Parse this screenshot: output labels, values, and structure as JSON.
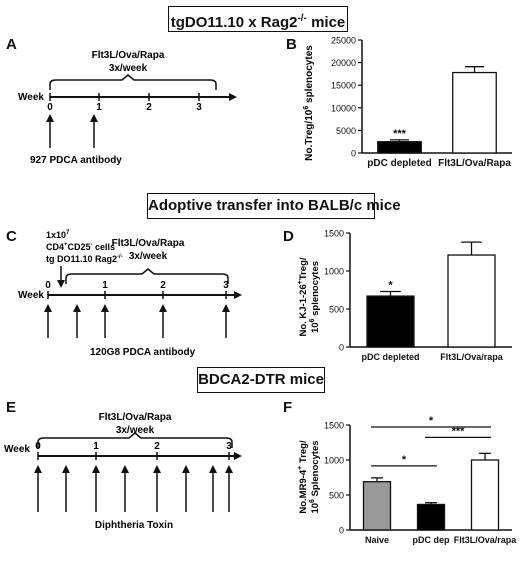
{
  "sections": [
    {
      "title": "tgDO11.10 x Rag2",
      "title_sup": "-/-",
      "title_after": " mice"
    },
    {
      "title": "Adoptive transfer into BALB/c mice"
    },
    {
      "title": "BDCA2-DTR mice"
    }
  ],
  "panels": {
    "a": {
      "letter": "A"
    },
    "b": {
      "letter": "B"
    },
    "c": {
      "letter": "C"
    },
    "d": {
      "letter": "D"
    },
    "e": {
      "letter": "E"
    },
    "f": {
      "letter": "F"
    }
  },
  "timelines": {
    "a": {
      "week_label": "Week",
      "ticks": [
        "0",
        "1",
        "2",
        "3"
      ],
      "treatment_line1": "Flt3L/Ova/Rapa",
      "treatment_line2": "3x/week",
      "antibody": "927 PDCA antibody"
    },
    "c": {
      "week_label": "Week",
      "ticks": [
        "0",
        "1",
        "2",
        "3"
      ],
      "transfer_line1": "1x10",
      "transfer_line1_sup": "7",
      "transfer_line2": "CD4",
      "transfer_line2_sup1": "+",
      "transfer_line2_mid": "CD25",
      "transfer_line2_sup2": "-",
      "transfer_line2_after": " cells",
      "transfer_line3": "tg DO11.10 Rag2",
      "transfer_line3_sup": "-/-",
      "treatment_line1": "Flt3L/Ova/Rapa",
      "treatment_line2": "3x/week",
      "antibody": "120G8 PDCA antibody"
    },
    "e": {
      "week_label": "Week",
      "ticks": [
        "0",
        "1",
        "2",
        "3"
      ],
      "treatment_line1": "Flt3L/Ova/Rapa",
      "treatment_line2": "3x/week",
      "toxin": "Diphtheria Toxin"
    }
  },
  "chart_data": [
    {
      "panel": "B",
      "type": "bar",
      "categories": [
        "pDC depleted",
        "Flt3L/Ova/Rapa"
      ],
      "values": [
        2500,
        17800
      ],
      "errors": [
        400,
        1300
      ],
      "colors": [
        "#000000",
        "#ffffff"
      ],
      "ylabel": "No.Treg/10",
      "ylabel_sup": "6",
      "ylabel_after": " splenocytes",
      "ylim": [
        0,
        25000
      ],
      "yticks": [
        0,
        5000,
        10000,
        15000,
        20000,
        25000
      ],
      "annotations": [
        "***"
      ]
    },
    {
      "panel": "D",
      "type": "bar",
      "categories": [
        "pDC depleted",
        "Flt3L/Ova/rapa"
      ],
      "values": [
        670,
        1210
      ],
      "errors": [
        60,
        170
      ],
      "colors": [
        "#000000",
        "#ffffff"
      ],
      "ylabel_line1": "No. KJ-1-26",
      "ylabel_line1_sup": "+",
      "ylabel_line1_after": "Treg/",
      "ylabel_line2": "10",
      "ylabel_line2_sup": "6",
      "ylabel_line2_after": " splenocytes",
      "ylim": [
        0,
        1500
      ],
      "yticks": [
        0,
        500,
        1000,
        1500
      ],
      "annotations": [
        "*"
      ]
    },
    {
      "panel": "F",
      "type": "bar",
      "categories": [
        "Naive",
        "pDC dep",
        "Flt3L/Ova/rapa"
      ],
      "values": [
        690,
        365,
        1000
      ],
      "errors": [
        55,
        25,
        95
      ],
      "colors": [
        "#999999",
        "#000000",
        "#ffffff"
      ],
      "ylabel_line1": "No.MR9-4",
      "ylabel_line1_sup": "+",
      "ylabel_line1_after": " Treg/",
      "ylabel_line2": "10",
      "ylabel_line2_sup": "6",
      "ylabel_line2_after": " Splenocytes",
      "ylim": [
        0,
        1500
      ],
      "yticks": [
        0,
        500,
        1000,
        1500
      ],
      "significance": [
        {
          "from": 0,
          "to": 1,
          "label": "*"
        },
        {
          "from": 1,
          "to": 2,
          "label": "***"
        },
        {
          "from": 0,
          "to": 2,
          "label": "*"
        }
      ]
    }
  ]
}
